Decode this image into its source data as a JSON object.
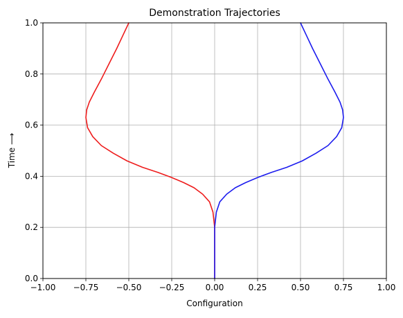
{
  "chart_data": {
    "type": "line",
    "title": "Demonstration Trajectories",
    "xlabel": "Configuration",
    "ylabel": "Time ⟶",
    "xlim": [
      -1.0,
      1.0
    ],
    "ylim": [
      0.0,
      1.0
    ],
    "grid": true,
    "x_ticks": [
      -1.0,
      -0.75,
      -0.5,
      -0.25,
      0.0,
      0.25,
      0.5,
      0.75,
      1.0
    ],
    "x_tick_labels": [
      "−1.00",
      "−0.75",
      "−0.50",
      "−0.25",
      "0.00",
      "0.25",
      "0.50",
      "0.75",
      "1.00"
    ],
    "y_ticks": [
      0.0,
      0.2,
      0.4,
      0.6,
      0.8,
      1.0
    ],
    "y_tick_labels": [
      "0.0",
      "0.2",
      "0.4",
      "0.6",
      "0.8",
      "1.0"
    ],
    "series": [
      {
        "color": "#ee1c1c",
        "x": [
          0.0,
          0.0,
          0.0,
          0.0,
          0.0,
          -0.01,
          -0.03,
          -0.07,
          -0.12,
          -0.18,
          -0.25,
          -0.33,
          -0.42,
          -0.51,
          -0.59,
          -0.66,
          -0.71,
          -0.74,
          -0.75,
          -0.745,
          -0.73,
          -0.7,
          -0.66,
          -0.615,
          -0.57,
          -0.535,
          -0.5
        ],
        "y": [
          0.0,
          0.05,
          0.1,
          0.15,
          0.2,
          0.26,
          0.3,
          0.33,
          0.355,
          0.375,
          0.395,
          0.415,
          0.435,
          0.46,
          0.49,
          0.52,
          0.555,
          0.59,
          0.63,
          0.66,
          0.69,
          0.73,
          0.78,
          0.84,
          0.9,
          0.95,
          1.0
        ]
      },
      {
        "color": "#1c1cee",
        "x": [
          0.0,
          0.0,
          0.0,
          0.0,
          0.0,
          0.01,
          0.03,
          0.07,
          0.12,
          0.18,
          0.25,
          0.33,
          0.42,
          0.51,
          0.59,
          0.66,
          0.71,
          0.74,
          0.75,
          0.745,
          0.73,
          0.7,
          0.66,
          0.615,
          0.57,
          0.535,
          0.5
        ],
        "y": [
          0.0,
          0.05,
          0.1,
          0.15,
          0.2,
          0.26,
          0.3,
          0.33,
          0.355,
          0.375,
          0.395,
          0.415,
          0.435,
          0.46,
          0.49,
          0.52,
          0.555,
          0.59,
          0.63,
          0.66,
          0.69,
          0.73,
          0.78,
          0.84,
          0.9,
          0.95,
          1.0
        ]
      }
    ]
  }
}
